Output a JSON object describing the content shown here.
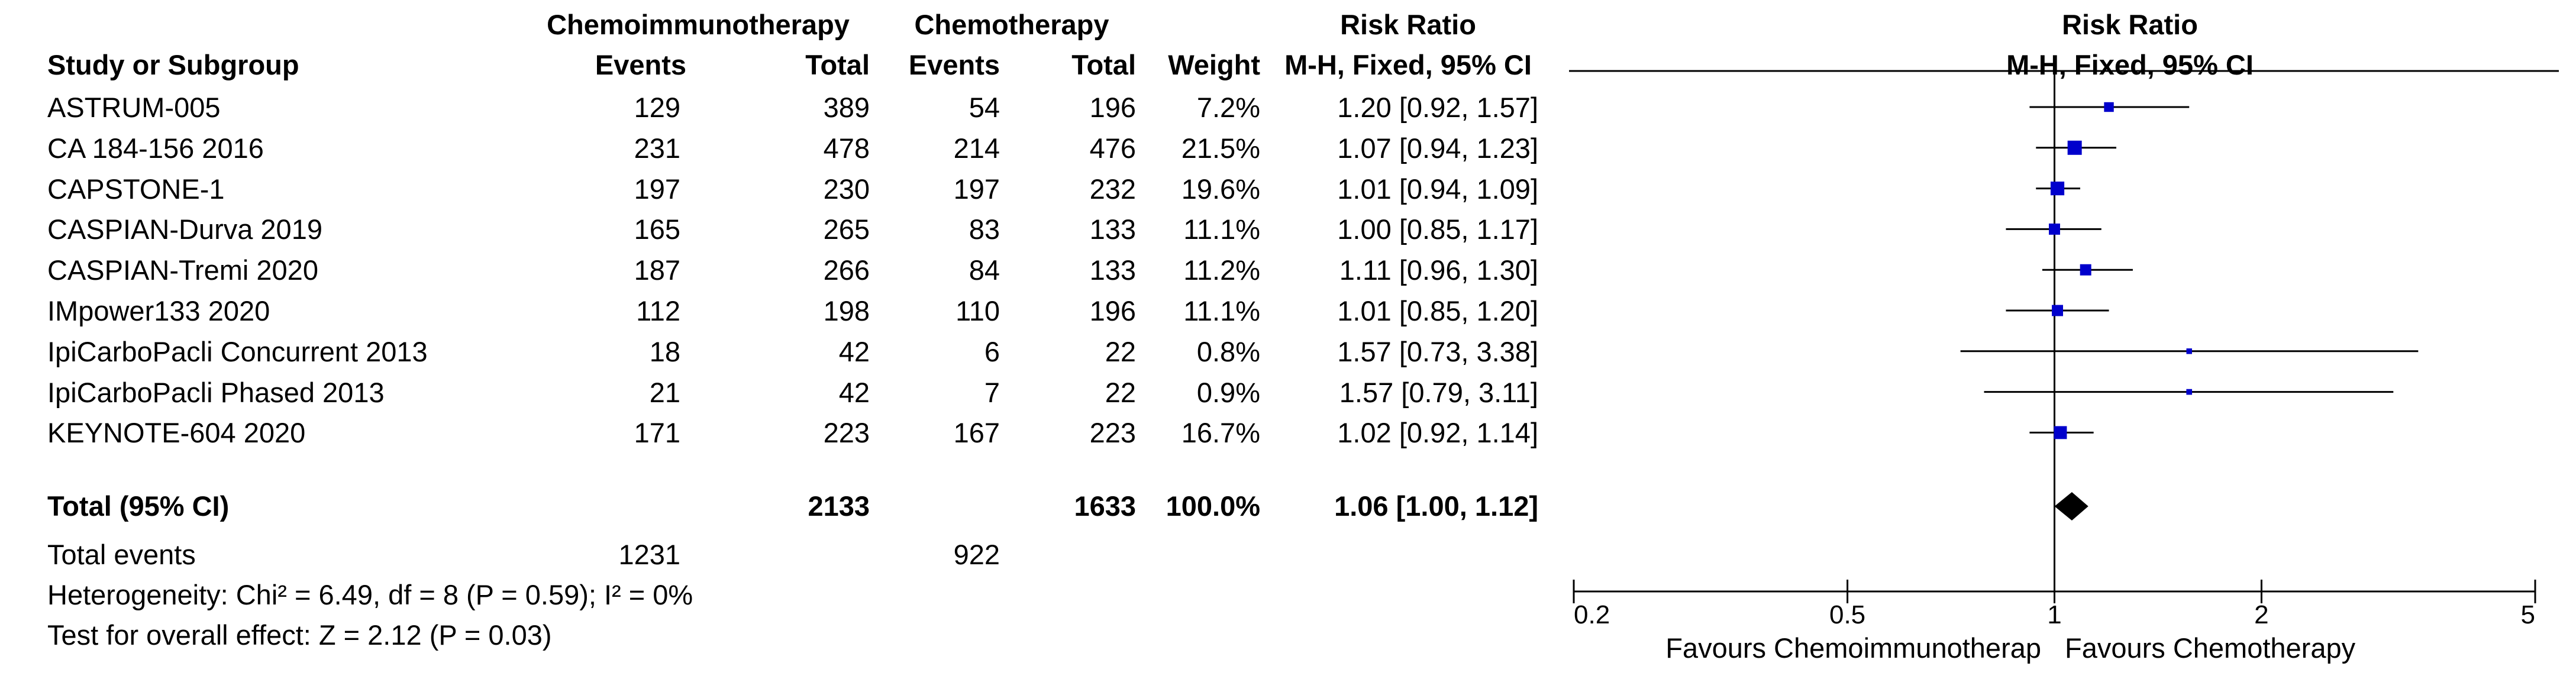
{
  "headers": {
    "group1": "Chemoimmunotherapy",
    "group2": "Chemotherapy",
    "effect_group": "Risk Ratio",
    "study_col": "Study or Subgroup",
    "events1": "Events",
    "total1": "Total",
    "events2": "Events",
    "total2": "Total",
    "weight": "Weight",
    "method": "M-H, Fixed, 95% CI",
    "plot_title": "Risk Ratio",
    "plot_method": "M-H, Fixed, 95% CI"
  },
  "studies": [
    {
      "name": "ASTRUM-005",
      "e1": "129",
      "t1": "389",
      "e2": "54",
      "t2": "196",
      "weight": "7.2%",
      "ci_text": "1.20 [0.92, 1.57]"
    },
    {
      "name": "CA 184-156 2016",
      "e1": "231",
      "t1": "478",
      "e2": "214",
      "t2": "476",
      "weight": "21.5%",
      "ci_text": "1.07 [0.94, 1.23]"
    },
    {
      "name": "CAPSTONE-1",
      "e1": "197",
      "t1": "230",
      "e2": "197",
      "t2": "232",
      "weight": "19.6%",
      "ci_text": "1.01 [0.94, 1.09]"
    },
    {
      "name": "CASPIAN-Durva 2019",
      "e1": "165",
      "t1": "265",
      "e2": "83",
      "t2": "133",
      "weight": "11.1%",
      "ci_text": "1.00 [0.85, 1.17]"
    },
    {
      "name": "CASPIAN-Tremi 2020",
      "e1": "187",
      "t1": "266",
      "e2": "84",
      "t2": "133",
      "weight": "11.2%",
      "ci_text": "1.11 [0.96, 1.30]"
    },
    {
      "name": "IMpower133 2020",
      "e1": "112",
      "t1": "198",
      "e2": "110",
      "t2": "196",
      "weight": "11.1%",
      "ci_text": "1.01 [0.85, 1.20]"
    },
    {
      "name": "IpiCarboPacli Concurrent 2013",
      "e1": "18",
      "t1": "42",
      "e2": "6",
      "t2": "22",
      "weight": "0.8%",
      "ci_text": "1.57 [0.73, 3.38]"
    },
    {
      "name": "IpiCarboPacli Phased 2013",
      "e1": "21",
      "t1": "42",
      "e2": "7",
      "t2": "22",
      "weight": "0.9%",
      "ci_text": "1.57 [0.79, 3.11]"
    },
    {
      "name": "KEYNOTE-604 2020",
      "e1": "171",
      "t1": "223",
      "e2": "167",
      "t2": "223",
      "weight": "16.7%",
      "ci_text": "1.02 [0.92, 1.14]"
    }
  ],
  "total": {
    "label": "Total (95% CI)",
    "t1": "2133",
    "t2": "1633",
    "weight": "100.0%",
    "ci_text": "1.06 [1.00, 1.12]"
  },
  "total_events": {
    "label": "Total events",
    "e1": "1231",
    "e2": "922"
  },
  "heterogeneity": "Heterogeneity: Chi² = 6.49, df = 8 (P = 0.59); I² = 0%",
  "overall_effect": "Test for overall effect: Z = 2.12 (P = 0.03)",
  "axis": {
    "ticks": [
      {
        "value": 0.2,
        "label": "0.2"
      },
      {
        "value": 0.5,
        "label": "0.5"
      },
      {
        "value": 1,
        "label": "1"
      },
      {
        "value": 2,
        "label": "2"
      },
      {
        "value": 5,
        "label": "5"
      }
    ],
    "favours_left": "Favours Chemoimmunotherap",
    "favours_right": "Favours Chemotherapy"
  },
  "colors": {
    "marker": "#0000cc",
    "line": "#000000",
    "diamond": "#000000"
  },
  "chart_data": {
    "type": "scatter",
    "scale": "log",
    "xlim": [
      0.2,
      5
    ],
    "reference_line": 1,
    "series": [
      {
        "points": [
          {
            "study": "ASTRUM-005",
            "rr": 1.2,
            "lower": 0.92,
            "upper": 1.57,
            "weight": 7.2
          },
          {
            "study": "CA 184-156 2016",
            "rr": 1.07,
            "lower": 0.94,
            "upper": 1.23,
            "weight": 21.5
          },
          {
            "study": "CAPSTONE-1",
            "rr": 1.01,
            "lower": 0.94,
            "upper": 1.09,
            "weight": 19.6
          },
          {
            "study": "CASPIAN-Durva 2019",
            "rr": 1.0,
            "lower": 0.85,
            "upper": 1.17,
            "weight": 11.1
          },
          {
            "study": "CASPIAN-Tremi 2020",
            "rr": 1.11,
            "lower": 0.96,
            "upper": 1.3,
            "weight": 11.2
          },
          {
            "study": "IMpower133 2020",
            "rr": 1.01,
            "lower": 0.85,
            "upper": 1.2,
            "weight": 11.1
          },
          {
            "study": "IpiCarboPacli Concurrent 2013",
            "rr": 1.57,
            "lower": 0.73,
            "upper": 3.38,
            "weight": 0.8
          },
          {
            "study": "IpiCarboPacli Phased 2013",
            "rr": 1.57,
            "lower": 0.79,
            "upper": 3.11,
            "weight": 0.9
          },
          {
            "study": "KEYNOTE-604 2020",
            "rr": 1.02,
            "lower": 0.92,
            "upper": 1.14,
            "weight": 16.7
          }
        ]
      }
    ],
    "pooled": {
      "rr": 1.06,
      "lower": 1.0,
      "upper": 1.12
    }
  }
}
